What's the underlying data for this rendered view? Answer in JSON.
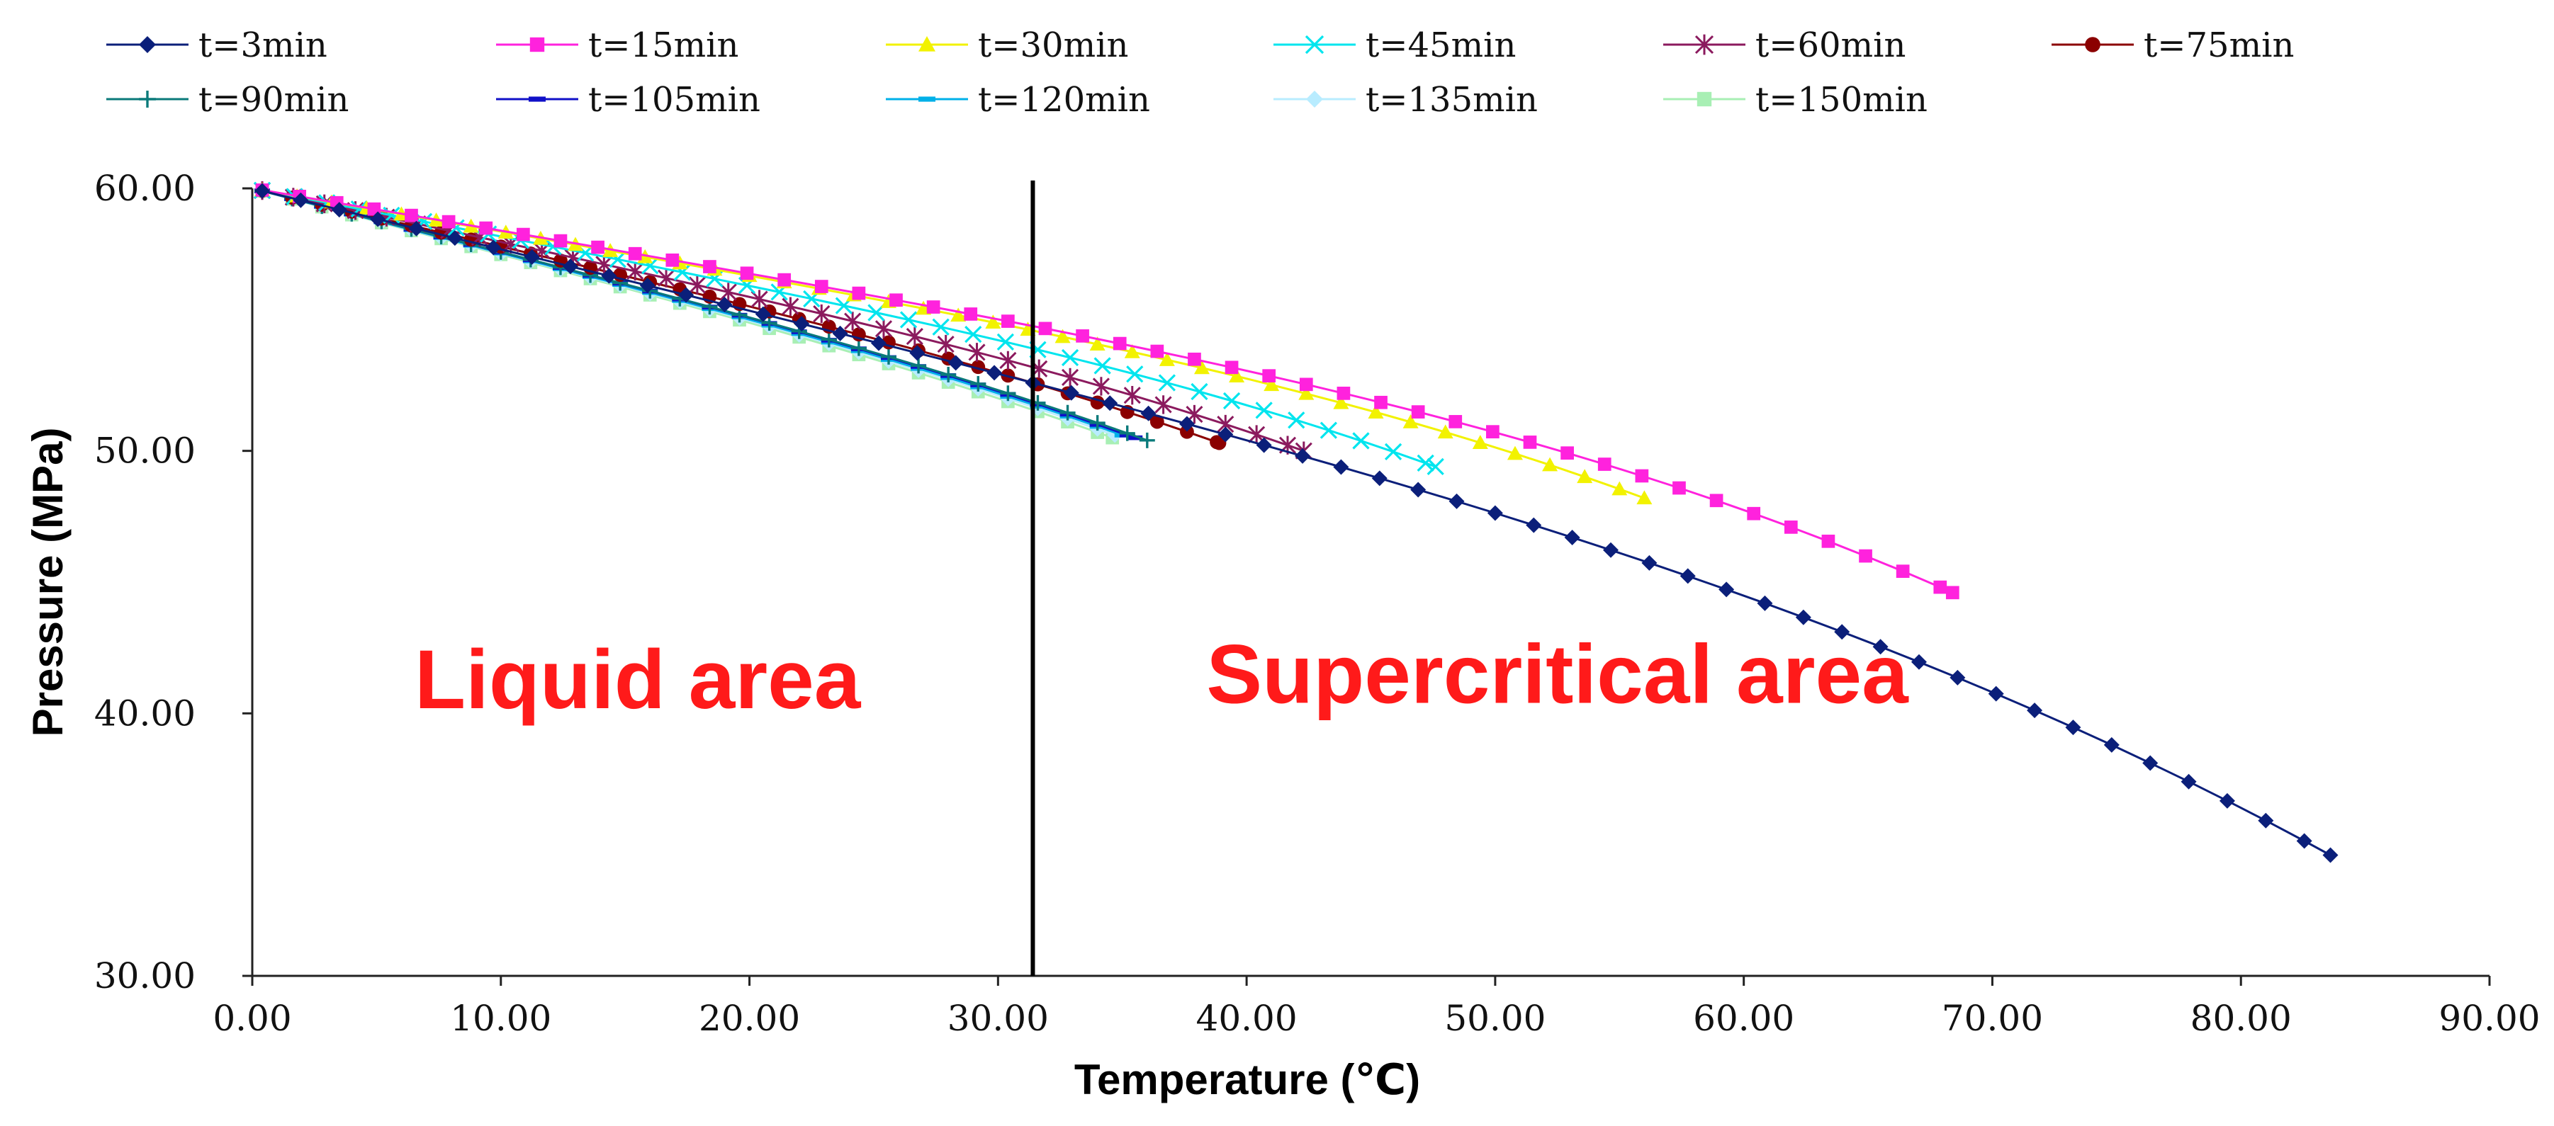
{
  "chart_data": {
    "type": "line",
    "title": "",
    "xlabel": "Temperature (℃)",
    "ylabel": "Pressure (MPa)",
    "xlim": [
      0,
      90
    ],
    "ylim": [
      30,
      60
    ],
    "x_ticks": [
      "0.00",
      "10.00",
      "20.00",
      "30.00",
      "40.00",
      "50.00",
      "60.00",
      "70.00",
      "80.00",
      "90.00"
    ],
    "y_ticks": [
      "30.00",
      "40.00",
      "50.00",
      "60.00"
    ],
    "grid": false,
    "legend_position": "top",
    "critical_temperature": 31.4,
    "annotations": [
      {
        "text": "Liquid area",
        "x": 15.5,
        "y": 40.2,
        "color": "#ff1a1a"
      },
      {
        "text": "Supercritical area",
        "x": 52.5,
        "y": 40.4,
        "color": "#ff1a1a"
      }
    ],
    "series": [
      {
        "name": "t=3min",
        "color": "#0b1f7a",
        "marker": "diamond",
        "T_end": 83.6,
        "P_end": 34.6,
        "curvature": 6.0,
        "step": 1.55
      },
      {
        "name": "t=15min",
        "color": "#ff22dd",
        "marker": "square",
        "T_end": 68.4,
        "P_end": 44.6,
        "curvature": 4.4,
        "step": 1.5
      },
      {
        "name": "t=30min",
        "color": "#f2f200",
        "marker": "triangle",
        "T_end": 56.0,
        "P_end": 48.2,
        "curvature": 2.6,
        "step": 1.4
      },
      {
        "name": "t=45min",
        "color": "#00e5ee",
        "marker": "x",
        "T_end": 47.6,
        "P_end": 49.4,
        "curvature": 1.9,
        "step": 1.3
      },
      {
        "name": "t=60min",
        "color": "#8b1a5e",
        "marker": "star",
        "T_end": 42.3,
        "P_end": 50.0,
        "curvature": 1.4,
        "step": 1.25
      },
      {
        "name": "t=75min",
        "color": "#8b0000",
        "marker": "circle",
        "T_end": 38.9,
        "P_end": 50.3,
        "curvature": 1.1,
        "step": 1.2
      },
      {
        "name": "t=90min",
        "color": "#0a7a7a",
        "marker": "plus",
        "T_end": 36.0,
        "P_end": 50.4,
        "curvature": 0.9,
        "step": 1.2
      },
      {
        "name": "t=105min",
        "color": "#1010c8",
        "marker": "dash",
        "T_end": 35.5,
        "P_end": 50.5,
        "curvature": 0.9,
        "step": 1.2
      },
      {
        "name": "t=120min",
        "color": "#00b0e8",
        "marker": "dash",
        "T_end": 35.0,
        "P_end": 50.6,
        "curvature": 0.8,
        "step": 1.2
      },
      {
        "name": "t=135min",
        "color": "#b8ecff",
        "marker": "diamond",
        "T_end": 34.7,
        "P_end": 50.6,
        "curvature": 0.8,
        "step": 1.2
      },
      {
        "name": "t=150min",
        "color": "#a8efb4",
        "marker": "square",
        "T_end": 34.6,
        "P_end": 50.5,
        "curvature": 0.8,
        "step": 1.2
      }
    ]
  }
}
